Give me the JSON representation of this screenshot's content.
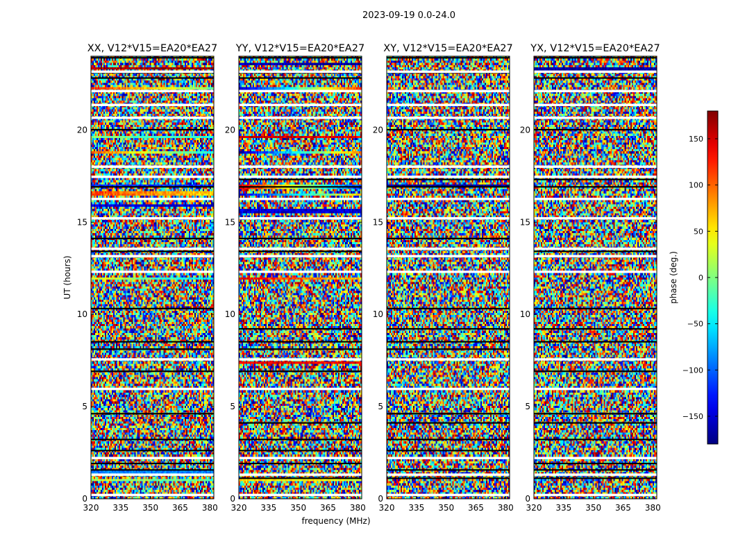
{
  "chart_data": {
    "type": "heatmap",
    "suptitle": "2023-09-19 0.0-24.0",
    "xlabel": "frequency (MHz)",
    "ylabel": "UT (hours)",
    "xlim": [
      320,
      382
    ],
    "ylim": [
      0,
      24
    ],
    "xticks": [
      320,
      335,
      350,
      365,
      380
    ],
    "yticks": [
      0,
      5,
      10,
      15,
      20
    ],
    "panels": [
      {
        "title": "XX, V12*V15=EA20*EA27",
        "coherent_rows": [
          {
            "ut": 23.35,
            "phase_start": 170,
            "phase_end": 175
          },
          {
            "ut": 22.25,
            "phase_start": 120,
            "phase_end": 0
          },
          {
            "ut": 19.6,
            "phase_start": 0,
            "phase_end": -40
          },
          {
            "ut": 18.8,
            "phase_start": 100,
            "phase_end": -40
          },
          {
            "ut": 17.0,
            "phase_start": -120,
            "phase_end": -120
          },
          {
            "ut": 16.55,
            "phase_start": 110,
            "phase_end": 60
          },
          {
            "ut": 15.9,
            "phase_start": -150,
            "phase_end": -150
          },
          {
            "ut": 11.95,
            "phase_start": 40,
            "phase_end": -60
          },
          {
            "ut": 1.45,
            "phase_start": -90,
            "phase_end": -90
          },
          {
            "ut": 1.0,
            "phase_start": 20,
            "phase_end": -20
          }
        ]
      },
      {
        "title": "YY, V12*V15=EA20*EA27",
        "coherent_rows": [
          {
            "ut": 23.6,
            "phase_start": -160,
            "phase_end": -170
          },
          {
            "ut": 22.2,
            "phase_start": -160,
            "phase_end": 120
          },
          {
            "ut": 19.6,
            "phase_start": 160,
            "phase_end": 140
          },
          {
            "ut": 18.8,
            "phase_start": -160,
            "phase_end": 90
          },
          {
            "ut": 16.9,
            "phase_start": 150,
            "phase_end": -120
          },
          {
            "ut": 16.5,
            "phase_start": -150,
            "phase_end": 60
          },
          {
            "ut": 15.6,
            "phase_start": -150,
            "phase_end": -150
          },
          {
            "ut": 11.95,
            "phase_start": 140,
            "phase_end": 60
          },
          {
            "ut": 7.4,
            "phase_start": 140,
            "phase_end": 140
          },
          {
            "ut": 1.05,
            "phase_start": 60,
            "phase_end": 30
          }
        ]
      },
      {
        "title": "XY, V12*V15=EA20*EA27",
        "coherent_rows": [
          {
            "ut": 17.0,
            "phase_start": -170,
            "phase_end": -170
          }
        ]
      },
      {
        "title": "YX, V12*V15=EA20*EA27",
        "coherent_rows": [
          {
            "ut": 23.3,
            "phase_start": -170,
            "phase_end": -170
          }
        ]
      }
    ],
    "colorbar": {
      "label": "phase (deg.)",
      "range": [
        -180,
        180
      ],
      "ticks": [
        150,
        100,
        50,
        0,
        -50,
        -100,
        -150
      ],
      "tick_labels": [
        "150",
        "100",
        "50",
        "0",
        "−50",
        "−100",
        "−150"
      ]
    },
    "blank_bands_ut": [
      23.15,
      22.1,
      21.35,
      20.65,
      18.0,
      17.45,
      16.25,
      15.2,
      13.55,
      13.15,
      12.3,
      7.55,
      5.95,
      2.2,
      1.3,
      0.2
    ],
    "dark_bands_ut": [
      23.9,
      23.1,
      22.8,
      20.0,
      17.3,
      16.9,
      14.1,
      13.4,
      10.3,
      9.2,
      8.5,
      8.1,
      6.9,
      4.6,
      4.1,
      3.2,
      2.6,
      1.9,
      1.55,
      1.1
    ]
  }
}
